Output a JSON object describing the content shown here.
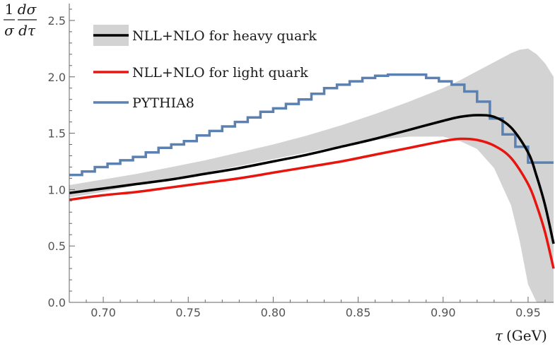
{
  "chart_data": {
    "type": "line",
    "title": "",
    "xlabel": "τ (GeV)",
    "xlabel_parts": {
      "symbol": "τ",
      "unit": "(GeV)"
    },
    "ylabel": "1/σ dσ/dτ",
    "ylabel_parts": {
      "one": "1",
      "sigma": "σ",
      "dsigma": "dσ",
      "dtau": "dτ"
    },
    "xlim": [
      0.68,
      0.965
    ],
    "ylim": [
      0.0,
      2.65
    ],
    "x_ticks": [
      "0.70",
      "0.75",
      "0.80",
      "0.85",
      "0.90",
      "0.95"
    ],
    "y_ticks": [
      "0.0",
      "0.5",
      "1.0",
      "1.5",
      "2.0",
      "2.5"
    ],
    "grid": false,
    "legend_position": "top-left",
    "legend": [
      {
        "label": "NLL+NLO for heavy quark",
        "kind": "line-with-band",
        "color": "#000000",
        "band_color": "#d3d3d3"
      },
      {
        "label": "NLL+NLO for light quark",
        "kind": "line",
        "color": "#e8150f"
      },
      {
        "label": "PYTHIA8",
        "kind": "line",
        "color": "#5b80b2"
      }
    ],
    "series": [
      {
        "name": "NLL+NLO for heavy quark",
        "color": "#000000",
        "x": [
          0.68,
          0.7,
          0.72,
          0.74,
          0.76,
          0.78,
          0.8,
          0.82,
          0.84,
          0.86,
          0.88,
          0.9,
          0.91,
          0.92,
          0.93,
          0.94,
          0.95,
          0.955,
          0.96,
          0.965
        ],
        "y": [
          0.97,
          1.01,
          1.05,
          1.09,
          1.14,
          1.19,
          1.25,
          1.31,
          1.38,
          1.45,
          1.53,
          1.61,
          1.645,
          1.66,
          1.645,
          1.55,
          1.33,
          1.12,
          0.86,
          0.52
        ]
      },
      {
        "name": "NLL+NLO for light quark",
        "color": "#e8150f",
        "x": [
          0.68,
          0.7,
          0.72,
          0.74,
          0.76,
          0.78,
          0.8,
          0.82,
          0.84,
          0.86,
          0.88,
          0.9,
          0.91,
          0.92,
          0.93,
          0.94,
          0.95,
          0.955,
          0.96,
          0.965
        ],
        "y": [
          0.91,
          0.95,
          0.98,
          1.02,
          1.06,
          1.1,
          1.15,
          1.2,
          1.25,
          1.31,
          1.37,
          1.43,
          1.45,
          1.44,
          1.39,
          1.28,
          1.05,
          0.86,
          0.62,
          0.3
        ]
      },
      {
        "name": "PYTHIA8",
        "color": "#5b80b2",
        "kind": "step",
        "bin_edges": [
          0.68,
          0.6875,
          0.695,
          0.7025,
          0.71,
          0.7175,
          0.725,
          0.7325,
          0.74,
          0.7475,
          0.755,
          0.7625,
          0.77,
          0.7775,
          0.785,
          0.7925,
          0.8,
          0.8075,
          0.815,
          0.8225,
          0.83,
          0.8375,
          0.845,
          0.8525,
          0.86,
          0.8675,
          0.875,
          0.8825,
          0.89,
          0.8975,
          0.905,
          0.9125,
          0.92,
          0.9275,
          0.935,
          0.9425,
          0.95,
          0.9575,
          0.965
        ],
        "values": [
          1.13,
          1.16,
          1.2,
          1.23,
          1.26,
          1.29,
          1.33,
          1.37,
          1.4,
          1.43,
          1.48,
          1.52,
          1.56,
          1.6,
          1.64,
          1.69,
          1.72,
          1.76,
          1.8,
          1.85,
          1.9,
          1.93,
          1.96,
          1.99,
          2.01,
          2.02,
          2.02,
          2.02,
          1.99,
          1.96,
          1.93,
          1.87,
          1.78,
          1.63,
          1.49,
          1.38,
          1.24,
          1.24
        ]
      }
    ],
    "uncertainty_band": {
      "name": "NLL+NLO for heavy quark (uncertainty)",
      "color": "#d3d3d3",
      "x": [
        0.68,
        0.7,
        0.72,
        0.74,
        0.76,
        0.78,
        0.8,
        0.82,
        0.84,
        0.86,
        0.88,
        0.9,
        0.91,
        0.92,
        0.93,
        0.94,
        0.945,
        0.95,
        0.955,
        0.96,
        0.965
      ],
      "upper": [
        1.04,
        1.09,
        1.14,
        1.2,
        1.26,
        1.33,
        1.4,
        1.48,
        1.57,
        1.67,
        1.78,
        1.9,
        1.97,
        2.05,
        2.13,
        2.21,
        2.24,
        2.25,
        2.2,
        2.12,
        2.0
      ],
      "lower": [
        0.93,
        0.98,
        1.04,
        1.1,
        1.15,
        1.21,
        1.27,
        1.33,
        1.39,
        1.44,
        1.47,
        1.47,
        1.43,
        1.36,
        1.19,
        0.86,
        0.55,
        0.16,
        0.0,
        0.0,
        0.0
      ]
    }
  }
}
